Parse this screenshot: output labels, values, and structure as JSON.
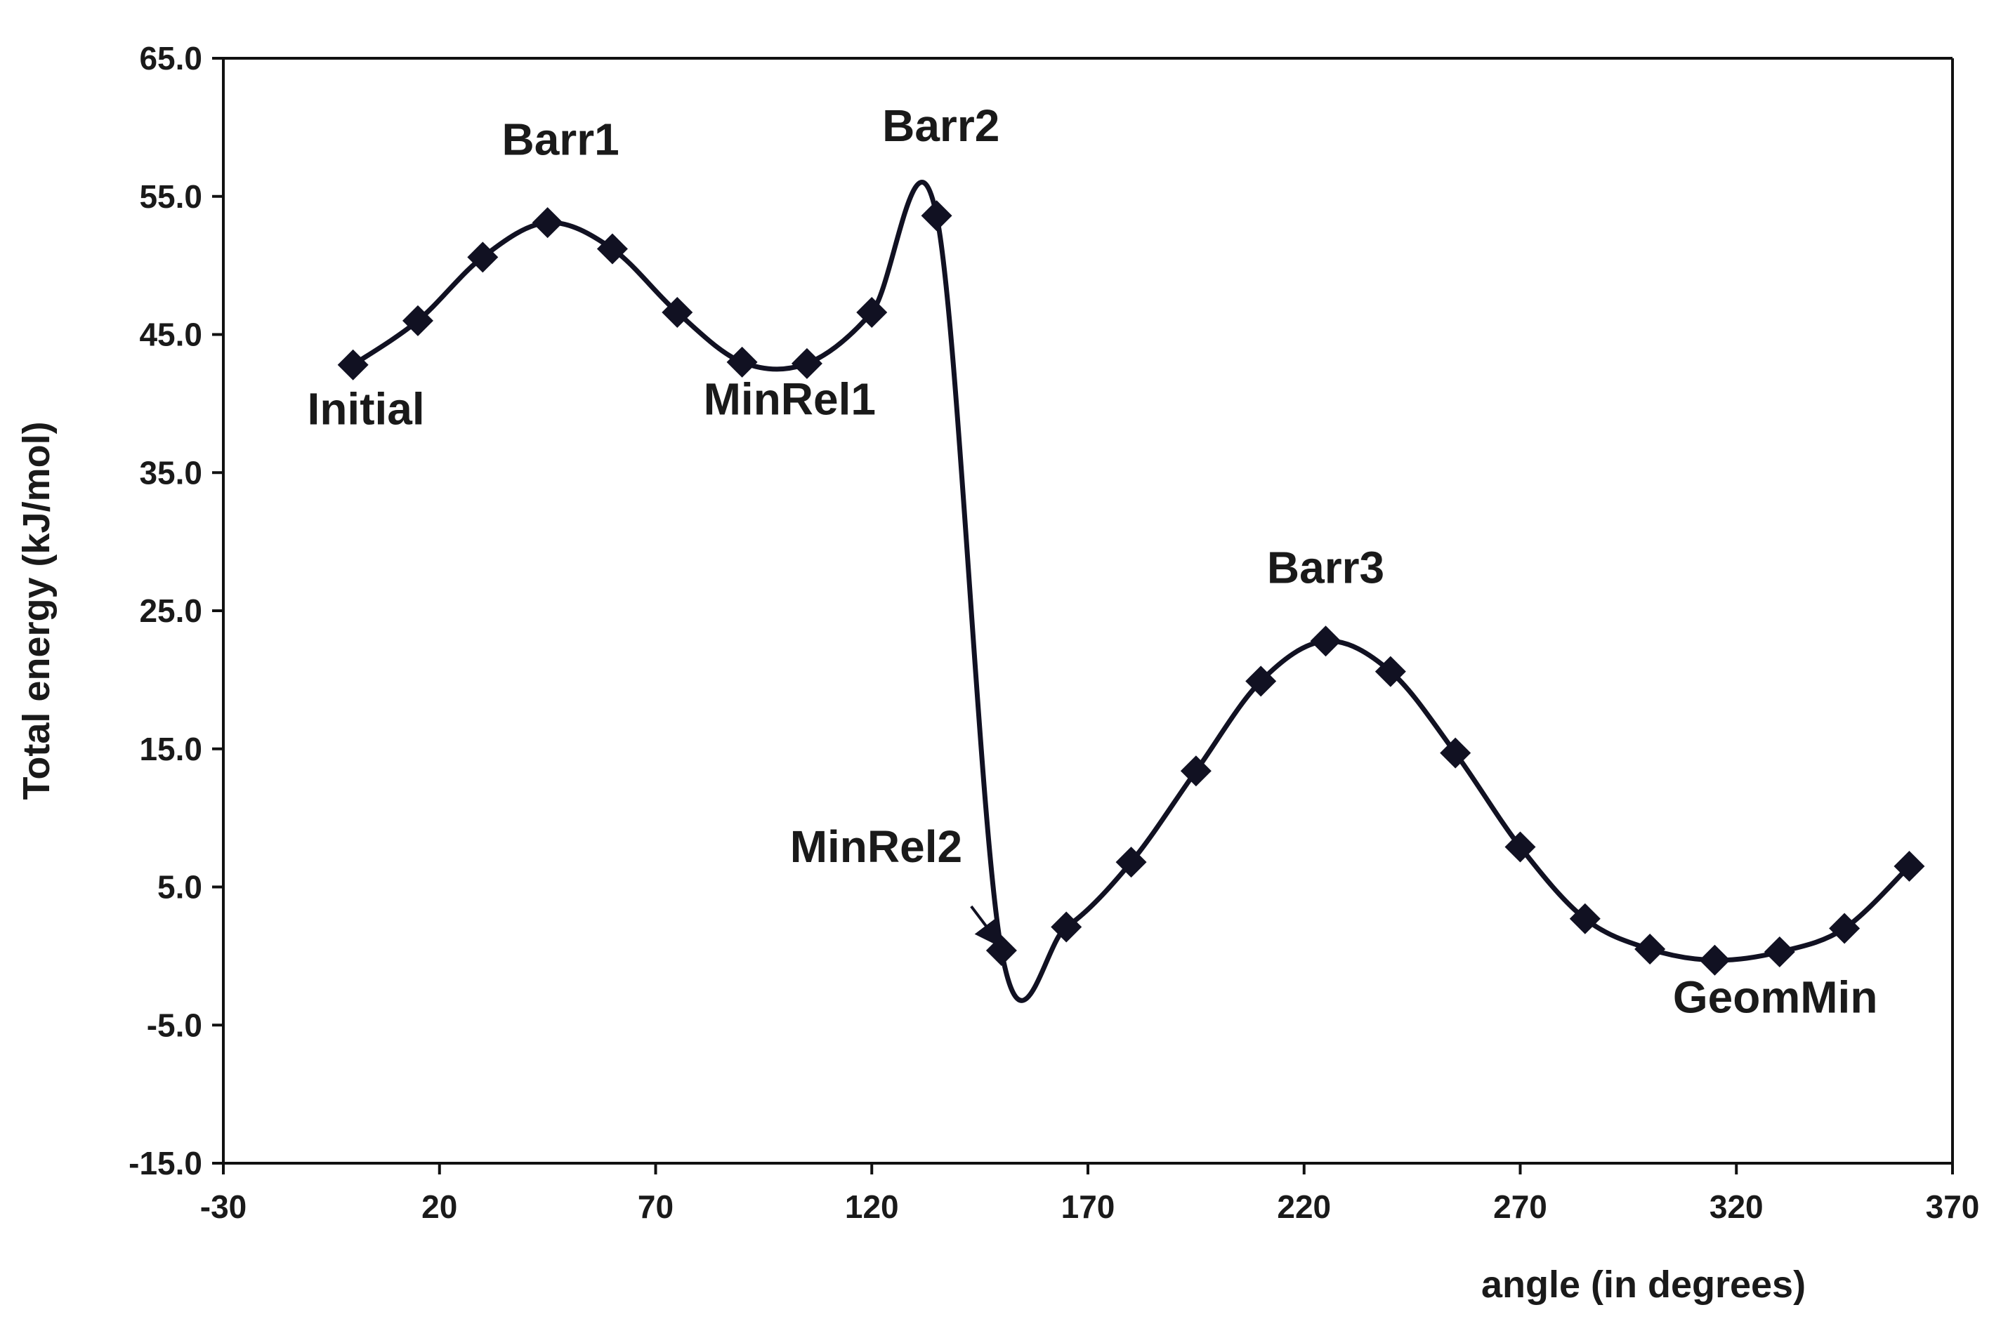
{
  "chart_data": {
    "type": "line",
    "title": "",
    "xlabel": "angle (in degrees)",
    "ylabel": "Total energy (kJ/mol)",
    "xlim": [
      -30,
      370
    ],
    "ylim": [
      -15,
      65
    ],
    "x_ticks": [
      -30,
      20,
      70,
      120,
      170,
      220,
      270,
      320,
      370
    ],
    "y_ticks": [
      -15,
      -5,
      5,
      15,
      25,
      35,
      45,
      55,
      65
    ],
    "x_tick_labels": [
      "-30",
      "20",
      "70",
      "120",
      "170",
      "220",
      "270",
      "320",
      "370"
    ],
    "y_tick_labels": [
      "-15.0",
      "-5.0",
      "5.0",
      "15.0",
      "25.0",
      "35.0",
      "45.0",
      "55.0",
      "65.0"
    ],
    "grid": false,
    "legend": "none",
    "marker": "diamond",
    "series": [
      {
        "color": "#111122",
        "points": [
          [
            0,
            42.8
          ],
          [
            15,
            46.0
          ],
          [
            30,
            50.6
          ],
          [
            45,
            53.1
          ],
          [
            60,
            51.2
          ],
          [
            75,
            46.6
          ],
          [
            90,
            43.0
          ],
          [
            105,
            42.9
          ],
          [
            120,
            46.6
          ],
          [
            135,
            53.6
          ],
          [
            150,
            0.4
          ],
          [
            165,
            2.1
          ],
          [
            180,
            6.8
          ],
          [
            195,
            13.4
          ],
          [
            210,
            19.9
          ],
          [
            225,
            22.8
          ],
          [
            240,
            20.6
          ],
          [
            255,
            14.7
          ],
          [
            270,
            7.9
          ],
          [
            285,
            2.7
          ],
          [
            300,
            0.5
          ],
          [
            315,
            -0.3
          ],
          [
            330,
            0.3
          ],
          [
            345,
            2.0
          ],
          [
            360,
            6.5
          ]
        ]
      }
    ],
    "annotations": [
      {
        "text": "Initial",
        "x": 3,
        "y": 38.5
      },
      {
        "text": "Barr1",
        "x": 48,
        "y": 58.0
      },
      {
        "text": "Barr2",
        "x": 136,
        "y": 59.0
      },
      {
        "text": "MinRel1",
        "x": 101,
        "y": 39.2
      },
      {
        "text": "MinRel2",
        "x": 121,
        "y": 6.8
      },
      {
        "text": "Barr3",
        "x": 225,
        "y": 27.0
      },
      {
        "text": "GeomMin",
        "x": 329,
        "y": -4.1
      }
    ]
  }
}
